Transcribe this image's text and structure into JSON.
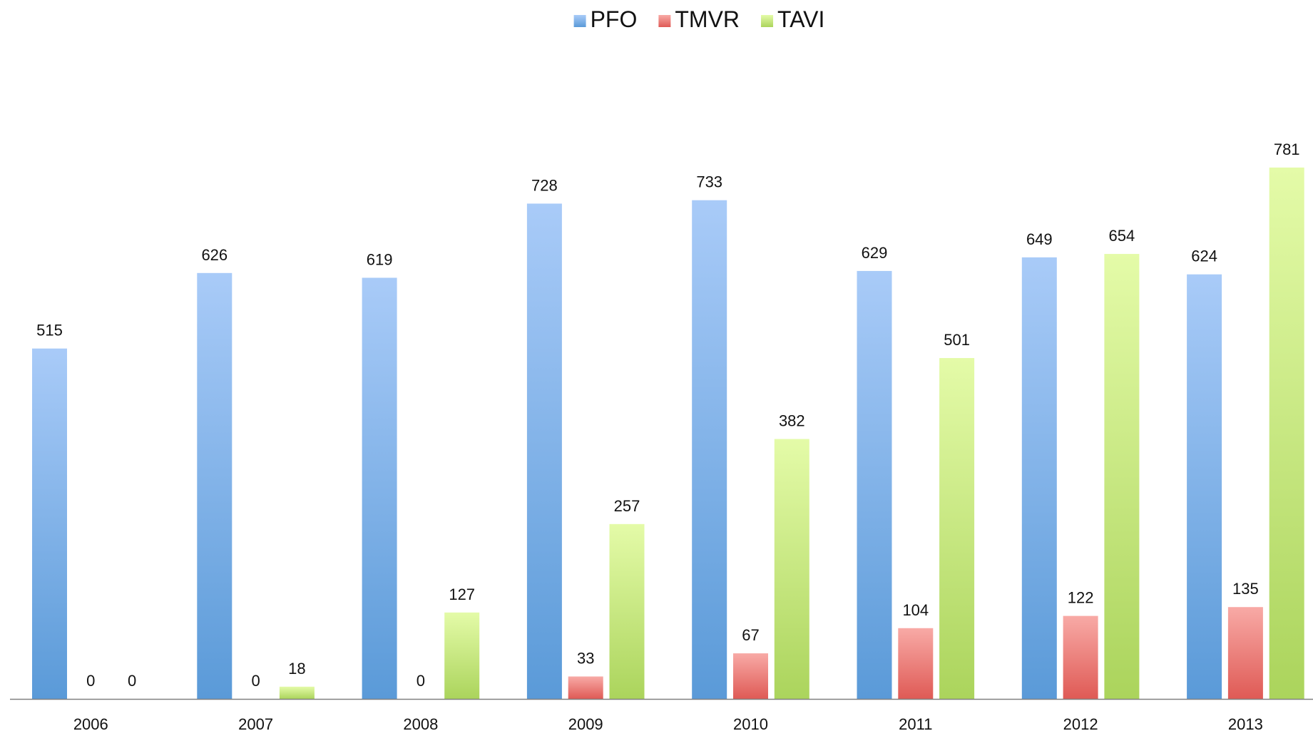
{
  "chart_data": {
    "type": "bar",
    "title": "",
    "xlabel": "",
    "ylabel": "",
    "categories": [
      "2006",
      "2007",
      "2008",
      "2009",
      "2010",
      "2011",
      "2012",
      "2013"
    ],
    "series": [
      {
        "name": "PFO",
        "values": [
          515,
          626,
          619,
          728,
          733,
          629,
          649,
          624
        ],
        "color": "#5a9ad8",
        "color_light": "#a9cbf8",
        "icon": "blue-gradient-square"
      },
      {
        "name": "TMVR",
        "values": [
          0,
          0,
          0,
          33,
          67,
          104,
          122,
          135
        ],
        "color": "#df5a55",
        "color_light": "#f8aaa6",
        "icon": "red-gradient-square"
      },
      {
        "name": "TAVI",
        "values": [
          0,
          18,
          127,
          257,
          382,
          501,
          654,
          781
        ],
        "color": "#abd45c",
        "color_light": "#e4fba8",
        "icon": "green-gradient-square"
      }
    ],
    "ylim": [
      0,
      800
    ],
    "grid": false,
    "y_axis_visible": false,
    "data_labels": true,
    "legend_position": "top-center",
    "axis_color": "#808080"
  }
}
